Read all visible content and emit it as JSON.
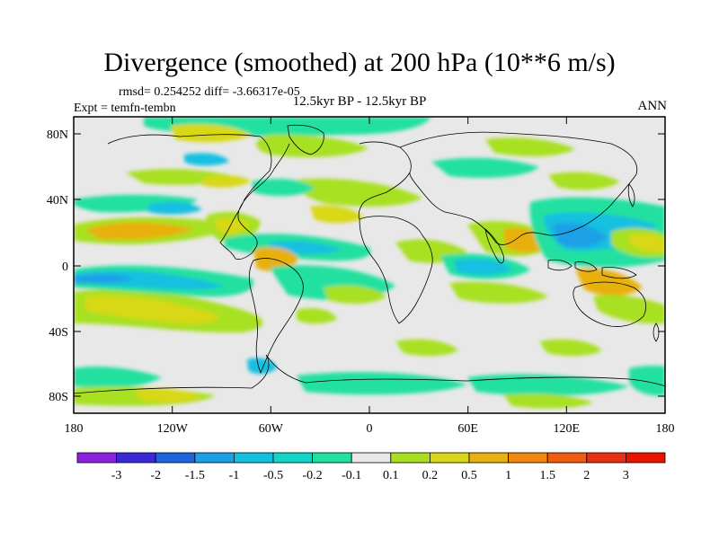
{
  "title": "Divergence (smoothed) at 200 hPa (10**6 m/s)",
  "stats_line": "rmsd= 0.254252 diff= -3.66317e-05",
  "experiment_line": "Expt = temfn-tembn",
  "period_line": "12.5kyr BP - 12.5kyr BP",
  "season": "ANN",
  "axes": {
    "lat_ticks": [
      "80N",
      "40N",
      "0",
      "40S",
      "80S"
    ],
    "lon_ticks": [
      "180",
      "120W",
      "60W",
      "0",
      "60E",
      "120E",
      "180"
    ]
  },
  "colorbar": {
    "labels": [
      "-3",
      "-2",
      "-1.5",
      "-1",
      "-0.5",
      "-0.2",
      "-0.1",
      "0.1",
      "0.2",
      "0.5",
      "1",
      "1.5",
      "2",
      "3"
    ],
    "colors": [
      "#8b22e0",
      "#3a28d8",
      "#1f64dc",
      "#1aa0e6",
      "#12c0e0",
      "#10d6c8",
      "#22e0a0",
      "#e8e8e8",
      "#a8e020",
      "#d8d818",
      "#e8b010",
      "#f08810",
      "#f05c10",
      "#e83010",
      "#e81400"
    ]
  },
  "palette": {
    "neutral": "#e8e8e8",
    "blue_dark": "#1f64dc",
    "blue": "#1aa0e6",
    "cyan": "#12c0e0",
    "teal": "#22e0a0",
    "green": "#a8e020",
    "yellow": "#d8d818",
    "orange": "#e8b010",
    "dark_orange": "#f08810"
  }
}
